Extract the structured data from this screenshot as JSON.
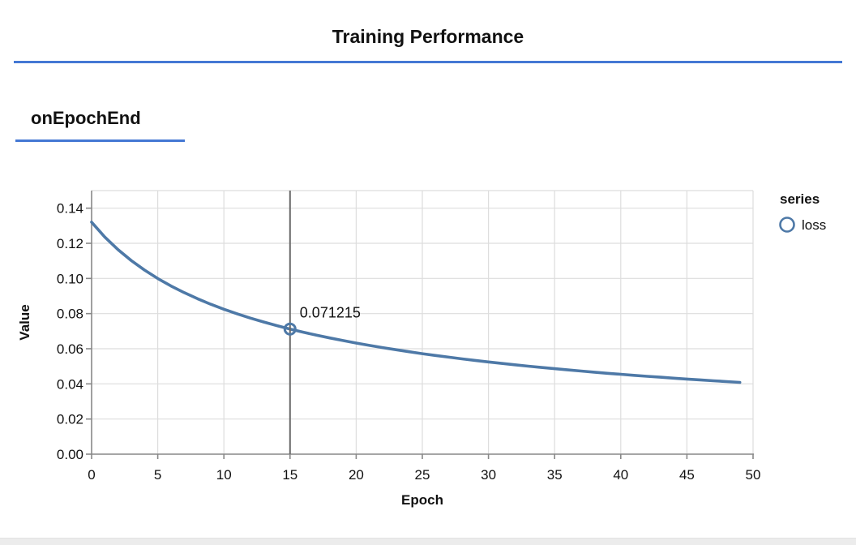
{
  "header": {
    "title": "Training Performance"
  },
  "section": {
    "title": "onEpochEnd"
  },
  "colors": {
    "accent_rule": "#4478d4",
    "series_line": "#4e79a7",
    "grid": "#dddddd",
    "axis": "#888888",
    "crosshair": "#6b6b6b",
    "text": "#111111",
    "bottom_bar": "#ececec"
  },
  "chart_data": {
    "type": "line",
    "title": "",
    "xlabel": "Epoch",
    "ylabel": "Value",
    "xlim": [
      0,
      50
    ],
    "ylim": [
      0,
      0.15
    ],
    "grid": true,
    "x_ticks": [
      0,
      5,
      10,
      15,
      20,
      25,
      30,
      35,
      40,
      45,
      50
    ],
    "x_tick_labels": [
      "0",
      "5",
      "10",
      "15",
      "20",
      "25",
      "30",
      "35",
      "40",
      "45",
      "50"
    ],
    "y_ticks": [
      0,
      0.02,
      0.04,
      0.06,
      0.08,
      0.1,
      0.12,
      0.14
    ],
    "y_tick_labels": [
      "0.00",
      "0.02",
      "0.04",
      "0.06",
      "0.08",
      "0.10",
      "0.12",
      "0.14"
    ],
    "legend": {
      "position": "right",
      "title": "series",
      "entries": [
        {
          "label": "loss",
          "symbol": "open-circle"
        }
      ]
    },
    "series": [
      {
        "name": "loss",
        "x_start": 0,
        "x_step": 1,
        "values": [
          0.132042,
          0.123573,
          0.116382,
          0.110169,
          0.104757,
          0.099987,
          0.095742,
          0.091931,
          0.088487,
          0.085358,
          0.082499,
          0.079878,
          0.077466,
          0.075234,
          0.073162,
          0.071215,
          0.069424,
          0.067718,
          0.066128,
          0.064641,
          0.063234,
          0.061893,
          0.060626,
          0.059428,
          0.058288,
          0.057201,
          0.056166,
          0.055177,
          0.054236,
          0.053336,
          0.052472,
          0.051642,
          0.050847,
          0.050083,
          0.049347,
          0.048638,
          0.047954,
          0.047292,
          0.046655,
          0.046038,
          0.045447,
          0.044878,
          0.044323,
          0.043784,
          0.043262,
          0.042755,
          0.042262,
          0.041784,
          0.041319,
          0.040866
        ]
      }
    ],
    "highlight": {
      "series": "loss",
      "x": 15,
      "value": 0.071215,
      "tooltip_label": "0.071215"
    }
  }
}
